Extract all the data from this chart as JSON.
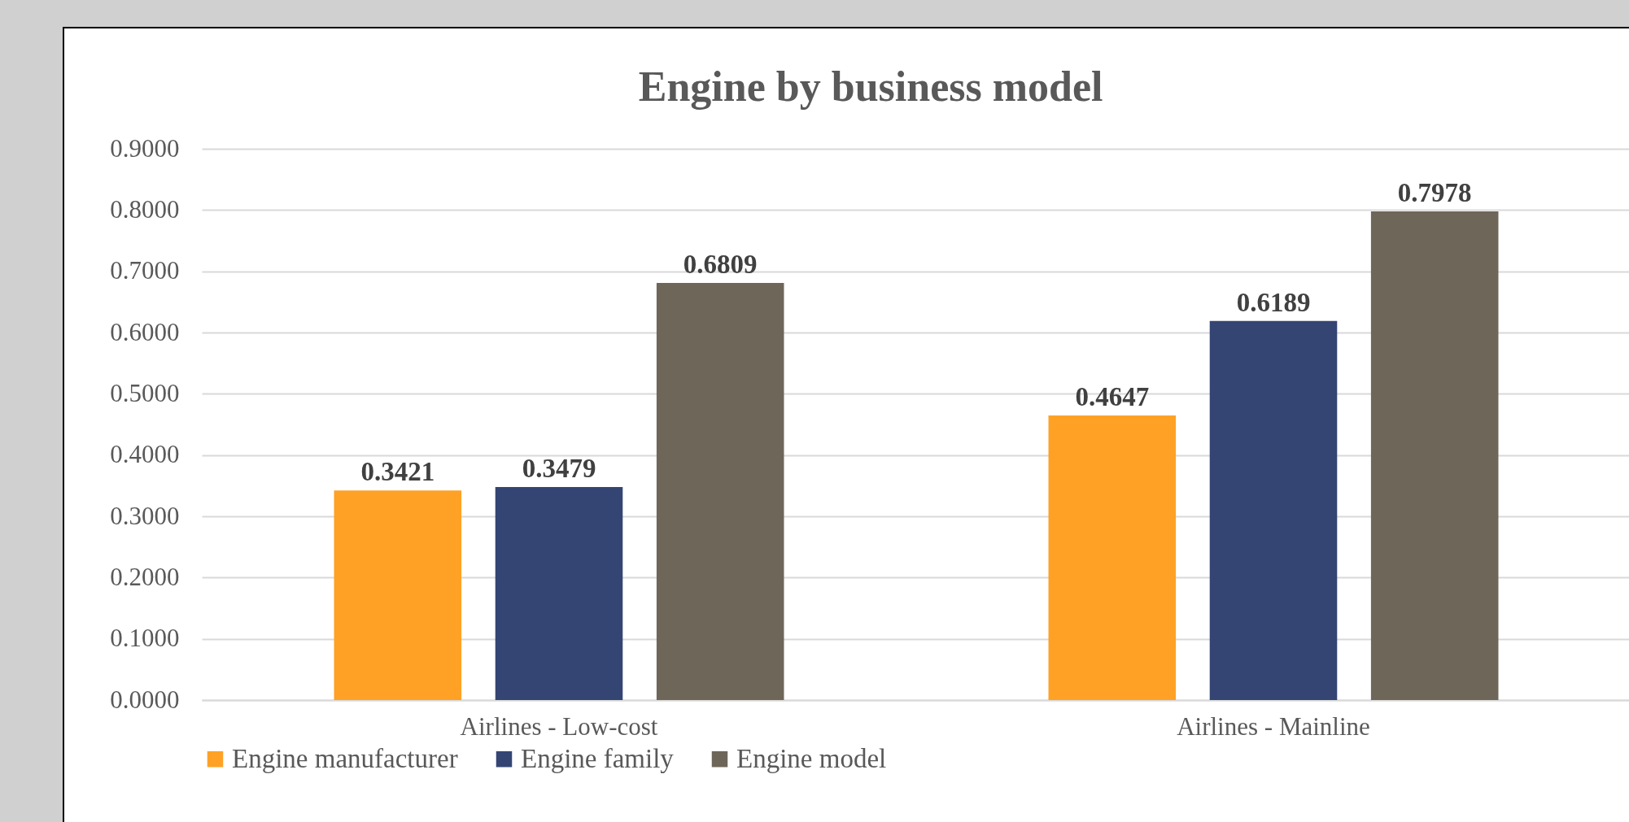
{
  "chart_data": {
    "type": "bar",
    "title": "Engine by business model",
    "categories": [
      "Airlines - Low-cost",
      "Airlines - Mainline"
    ],
    "series": [
      {
        "name": "Engine manufacturer",
        "color": "#ffa124",
        "values": [
          0.3421,
          0.4647
        ]
      },
      {
        "name": "Engine family",
        "color": "#344573",
        "values": [
          0.3479,
          0.6189
        ]
      },
      {
        "name": "Engine model",
        "color": "#6e6659",
        "values": [
          0.6809,
          0.7978
        ]
      }
    ],
    "ylim": [
      0,
      0.9
    ],
    "yticks": [
      {
        "value": 0,
        "label": "0.0000"
      },
      {
        "value": 0.1,
        "label": "0.1000"
      },
      {
        "value": 0.2,
        "label": "0.2000"
      },
      {
        "value": 0.3,
        "label": "0.3000"
      },
      {
        "value": 0.4,
        "label": "0.4000"
      },
      {
        "value": 0.5,
        "label": "0.5000"
      },
      {
        "value": 0.6,
        "label": "0.6000"
      },
      {
        "value": 0.7,
        "label": "0.7000"
      },
      {
        "value": 0.8,
        "label": "0.8000"
      },
      {
        "value": 0.9,
        "label": "0.9000"
      }
    ],
    "grid": "y",
    "legend": "bottom",
    "data_labels": true
  }
}
